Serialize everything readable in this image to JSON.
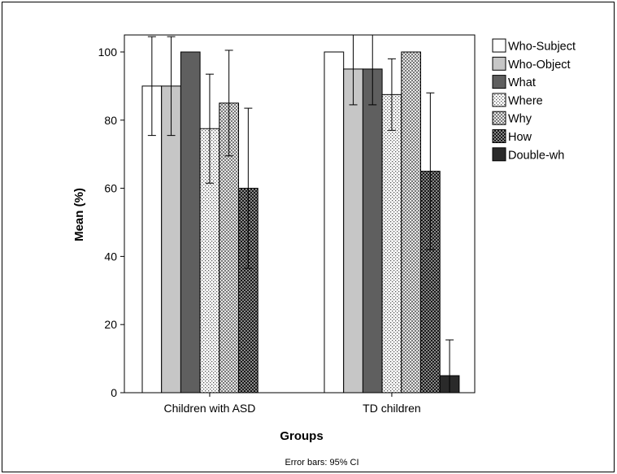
{
  "chart_data": {
    "type": "bar",
    "categories": [
      "Children with ASD",
      "TD children"
    ],
    "series": [
      {
        "name": "Who-Subject",
        "values": [
          90,
          100
        ],
        "ci": [
          [
            75.5,
            104.5
          ],
          null
        ],
        "pattern": "white"
      },
      {
        "name": "Who-Object",
        "values": [
          90,
          95
        ],
        "ci": [
          [
            75.5,
            104.5
          ],
          [
            84.5,
            105.5
          ]
        ],
        "pattern": "lightgray"
      },
      {
        "name": "What",
        "values": [
          100,
          95
        ],
        "ci": [
          null,
          [
            84.5,
            105.5
          ]
        ],
        "pattern": "darkgray"
      },
      {
        "name": "Where",
        "values": [
          77.5,
          87.5
        ],
        "ci": [
          [
            61.5,
            93.5
          ],
          [
            77,
            98
          ]
        ],
        "pattern": "dots"
      },
      {
        "name": "Why",
        "values": [
          85,
          100
        ],
        "ci": [
          [
            69.5,
            100.5
          ],
          null
        ],
        "pattern": "checker"
      },
      {
        "name": "How",
        "values": [
          60,
          65
        ],
        "ci": [
          [
            36.5,
            83.5
          ],
          [
            42,
            88
          ]
        ],
        "pattern": "darkchecker"
      },
      {
        "name": "Double-wh",
        "values": [
          0,
          5
        ],
        "ci": [
          null,
          [
            0,
            15.5
          ]
        ],
        "pattern": "black"
      }
    ],
    "ylabel": "Mean (%)",
    "xlabel": "Groups",
    "ylim": [
      0,
      105
    ],
    "yticks": [
      0,
      20,
      40,
      60,
      80,
      100
    ],
    "grid": false,
    "legend": "right",
    "footnote": "Error bars: 95% CI"
  }
}
